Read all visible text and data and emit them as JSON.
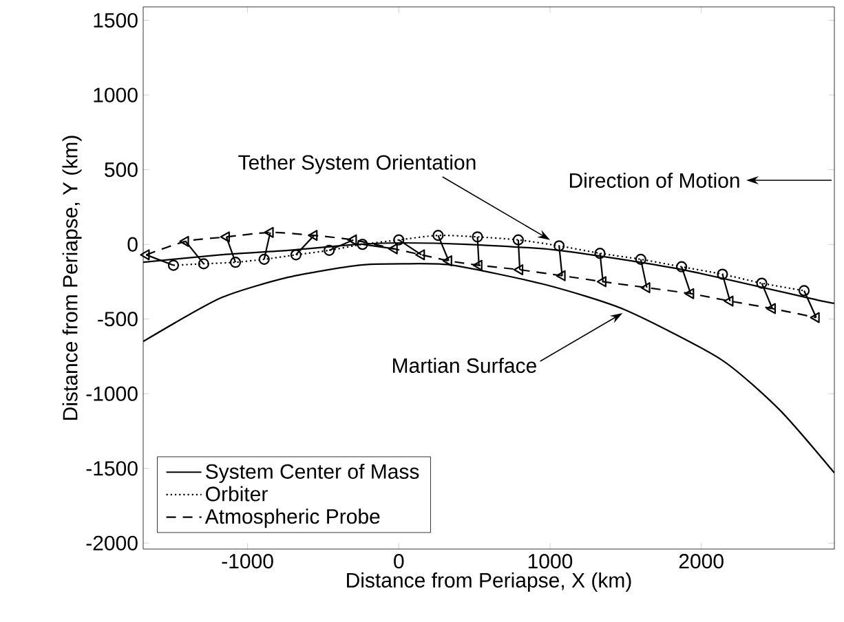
{
  "chart_data": {
    "type": "line",
    "xlabel": "Distance from Periapse, X (km)",
    "ylabel": "Distance from Periapse, Y (km)",
    "xlim": [
      -1690,
      2880
    ],
    "ylim": [
      -2040,
      1590
    ],
    "xticks": [
      -1000,
      0,
      1000,
      2000
    ],
    "yticks": [
      -2000,
      -1500,
      -1000,
      -500,
      0,
      500,
      1000,
      1500
    ],
    "grid": false,
    "legend": "bottom left",
    "annotations": [
      "Direction of Motion",
      {
        "text": "Tether System Orientation",
        "x": 1000,
        "y": 30
      },
      {
        "text": "Martian Surface",
        "x": 1480,
        "y": -460
      }
    ],
    "series": [
      {
        "name": "System Center of Mass",
        "color": "#000000",
        "line_style": "solid",
        "marker": "none",
        "x": [
          -1690,
          -1180,
          -730,
          -270,
          30,
          450,
          1060,
          1880,
          2800,
          2880
        ],
        "values": [
          -120,
          -70,
          -40,
          0,
          10,
          0,
          -40,
          -170,
          -380,
          -390
        ]
      },
      {
        "name": "Orbiter",
        "color": "#000000",
        "line_style": "dotted",
        "marker": "circle",
        "x": [
          -1490,
          -1290,
          -1080,
          -890,
          -680,
          -460,
          -240,
          0,
          260,
          520,
          790,
          1060,
          1330,
          1600,
          1870,
          2140,
          2400,
          2680
        ],
        "values": [
          -140,
          -130,
          -120,
          -100,
          -70,
          -40,
          0,
          30,
          60,
          50,
          30,
          -10,
          -60,
          -100,
          -150,
          -200,
          -260,
          -310
        ]
      },
      {
        "name": "Atmospheric Probe",
        "color": "#000000",
        "line_style": "dashed",
        "marker": "triangle",
        "x": [
          -1670,
          -1410,
          -1140,
          -850,
          -560,
          -300,
          -30,
          150,
          330,
          530,
          800,
          1080,
          1350,
          1640,
          1930,
          2190,
          2470,
          2760
        ],
        "values": [
          -70,
          20,
          50,
          80,
          60,
          30,
          -30,
          -70,
          -110,
          -140,
          -170,
          -210,
          -250,
          -290,
          -330,
          -380,
          -430,
          -490
        ]
      },
      {
        "color": "#000000",
        "line_style": "solid",
        "marker": "none",
        "x": [
          -1690,
          -1180,
          -730,
          -270,
          30,
          360,
          970,
          1500,
          2130,
          2520,
          2880
        ],
        "values": [
          -650,
          -360,
          -220,
          -140,
          -130,
          -140,
          -270,
          -440,
          -770,
          -1110,
          -1530
        ]
      },
      {
        "color": "#000000",
        "line_style": "solid",
        "marker": "none",
        "x": [
          -1490,
          -1670
        ],
        "values": [
          -140,
          -70
        ]
      },
      {
        "color": "#000000",
        "line_style": "solid",
        "marker": "none",
        "x": [
          -1290,
          -1410
        ],
        "values": [
          -130,
          20
        ]
      },
      {
        "color": "#000000",
        "line_style": "solid",
        "marker": "none",
        "x": [
          -1080,
          -1140
        ],
        "values": [
          -120,
          50
        ]
      },
      {
        "color": "#000000",
        "line_style": "solid",
        "marker": "none",
        "x": [
          -890,
          -850
        ],
        "values": [
          -100,
          80
        ]
      },
      {
        "color": "#000000",
        "line_style": "solid",
        "marker": "none",
        "x": [
          -680,
          -560
        ],
        "values": [
          -70,
          60
        ]
      },
      {
        "color": "#000000",
        "line_style": "solid",
        "marker": "none",
        "x": [
          -460,
          -300
        ],
        "values": [
          -40,
          30
        ]
      },
      {
        "color": "#000000",
        "line_style": "solid",
        "marker": "none",
        "x": [
          -240,
          -30
        ],
        "values": [
          0,
          -30
        ]
      },
      {
        "color": "#000000",
        "line_style": "solid",
        "marker": "none",
        "x": [
          0,
          150
        ],
        "values": [
          30,
          -70
        ]
      },
      {
        "color": "#000000",
        "line_style": "solid",
        "marker": "none",
        "x": [
          260,
          330
        ],
        "values": [
          60,
          -110
        ]
      },
      {
        "color": "#000000",
        "line_style": "solid",
        "marker": "none",
        "x": [
          520,
          530
        ],
        "values": [
          50,
          -140
        ]
      },
      {
        "color": "#000000",
        "line_style": "solid",
        "marker": "none",
        "x": [
          790,
          800
        ],
        "values": [
          30,
          -170
        ]
      },
      {
        "color": "#000000",
        "line_style": "solid",
        "marker": "none",
        "x": [
          1060,
          1080
        ],
        "values": [
          -10,
          -210
        ]
      },
      {
        "color": "#000000",
        "line_style": "solid",
        "marker": "none",
        "x": [
          1330,
          1350
        ],
        "values": [
          -60,
          -250
        ]
      },
      {
        "color": "#000000",
        "line_style": "solid",
        "marker": "none",
        "x": [
          1600,
          1640
        ],
        "values": [
          -100,
          -290
        ]
      },
      {
        "color": "#000000",
        "line_style": "solid",
        "marker": "none",
        "x": [
          1870,
          1930
        ],
        "values": [
          -150,
          -330
        ]
      },
      {
        "color": "#000000",
        "line_style": "solid",
        "marker": "none",
        "x": [
          2140,
          2190
        ],
        "values": [
          -200,
          -380
        ]
      },
      {
        "color": "#000000",
        "line_style": "solid",
        "marker": "none",
        "x": [
          2400,
          2470
        ],
        "values": [
          -260,
          -430
        ]
      },
      {
        "color": "#000000",
        "line_style": "solid",
        "marker": "none",
        "x": [
          2680,
          2760
        ],
        "values": [
          -310,
          -490
        ]
      }
    ]
  }
}
